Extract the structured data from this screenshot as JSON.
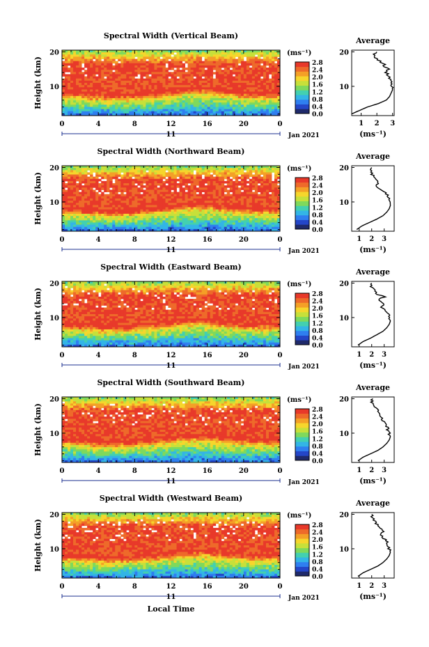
{
  "figure": {
    "xlabel": "Local Time",
    "date_label": "Jan 2021",
    "day_label": "11",
    "unit_label": "(ms⁻¹)",
    "colorbar_ticks": [
      "0.0",
      "0.4",
      "0.8",
      "1.2",
      "1.6",
      "2.0",
      "2.4",
      "2.8"
    ],
    "colorbar_colors": [
      "#1f2a6b",
      "#2446c8",
      "#2f7ff0",
      "#33b5e6",
      "#43d0b0",
      "#7fd95c",
      "#c7e03a",
      "#f6d62c",
      "#f4a027",
      "#ee6a2a",
      "#e8392a"
    ],
    "x_ticks": [
      "0",
      "4",
      "8",
      "12",
      "16",
      "20",
      "0"
    ],
    "y_ticks": [
      "20",
      "10"
    ],
    "avg_title": "Average",
    "avg_xlabel": "(ms⁻¹)",
    "avg_ticks_0": [
      "1",
      "2",
      "3"
    ],
    "avg_ticks_n": [
      "1",
      "2",
      "3"
    ]
  },
  "chart_data": [
    {
      "type": "heatmap",
      "title": "Spectral Width (Vertical Beam)",
      "ylabel": "Height (km)",
      "xlabel": "",
      "xlim": [
        0,
        24
      ],
      "ylim": [
        1.5,
        20.5
      ],
      "clim": [
        0.0,
        2.8
      ],
      "profile": {
        "heights": [
          2,
          3,
          4,
          5,
          6,
          7,
          8,
          9,
          10,
          11,
          12,
          13,
          14,
          15,
          16,
          17,
          18,
          19,
          20
        ],
        "values": [
          0.4,
          0.9,
          1.4,
          2.1,
          2.6,
          2.8,
          2.9,
          3.0,
          3.0,
          2.9,
          2.8,
          2.8,
          2.6,
          2.7,
          2.5,
          2.3,
          2.0,
          1.8,
          2.0
        ]
      }
    },
    {
      "type": "heatmap",
      "title": "Spectral Width (Northward Beam)",
      "ylabel": "Height (km)",
      "xlim": [
        0,
        24
      ],
      "ylim": [
        1.5,
        20.5
      ],
      "clim": [
        0.0,
        2.8
      ],
      "profile": {
        "heights": [
          2,
          3,
          4,
          5,
          6,
          7,
          8,
          9,
          10,
          11,
          12,
          13,
          14,
          15,
          16,
          17,
          18,
          19,
          20
        ],
        "values": [
          0.8,
          1.2,
          1.8,
          2.4,
          2.9,
          3.2,
          3.4,
          3.5,
          3.5,
          3.4,
          3.3,
          3.0,
          2.6,
          2.4,
          2.5,
          2.3,
          2.0,
          1.9,
          2.0
        ]
      }
    },
    {
      "type": "heatmap",
      "title": "Spectral Width (Eastward Beam)",
      "ylabel": "Height (km)",
      "xlim": [
        0,
        24
      ],
      "ylim": [
        1.5,
        20.5
      ],
      "clim": [
        0.0,
        2.8
      ],
      "profile": {
        "heights": [
          2,
          3,
          4,
          5,
          6,
          7,
          8,
          9,
          10,
          11,
          12,
          13,
          14,
          15,
          16,
          17,
          18,
          19,
          20
        ],
        "values": [
          0.9,
          1.3,
          1.9,
          2.4,
          2.9,
          3.2,
          3.4,
          3.5,
          3.4,
          3.3,
          3.1,
          2.7,
          3.0,
          2.5,
          3.0,
          2.3,
          2.2,
          2.0,
          2.0
        ]
      }
    },
    {
      "type": "heatmap",
      "title": "Spectral Width (Southward Beam)",
      "ylabel": "Height (km)",
      "xlim": [
        0,
        24
      ],
      "ylim": [
        1.5,
        20.5
      ],
      "clim": [
        0.0,
        2.8
      ],
      "profile": {
        "heights": [
          2,
          3,
          4,
          5,
          6,
          7,
          8,
          9,
          10,
          11,
          12,
          13,
          14,
          15,
          16,
          17,
          18,
          19,
          20
        ],
        "values": [
          0.9,
          1.3,
          1.9,
          2.5,
          2.9,
          3.2,
          3.4,
          3.5,
          3.4,
          3.3,
          3.2,
          3.0,
          2.8,
          2.7,
          2.6,
          2.4,
          2.2,
          2.0,
          2.1
        ]
      }
    },
    {
      "type": "heatmap",
      "title": "Spectral Width (Westward Beam)",
      "ylabel": "Height (km)",
      "xlim": [
        0,
        24
      ],
      "ylim": [
        1.5,
        20.5
      ],
      "clim": [
        0.0,
        2.8
      ],
      "profile": {
        "heights": [
          2,
          3,
          4,
          5,
          6,
          7,
          8,
          9,
          10,
          11,
          12,
          13,
          14,
          15,
          16,
          17,
          18,
          19,
          20
        ],
        "values": [
          0.9,
          1.3,
          1.9,
          2.5,
          2.9,
          3.2,
          3.4,
          3.5,
          3.4,
          3.3,
          3.2,
          3.0,
          2.7,
          2.9,
          2.6,
          2.4,
          2.2,
          2.1,
          2.0
        ]
      }
    }
  ]
}
